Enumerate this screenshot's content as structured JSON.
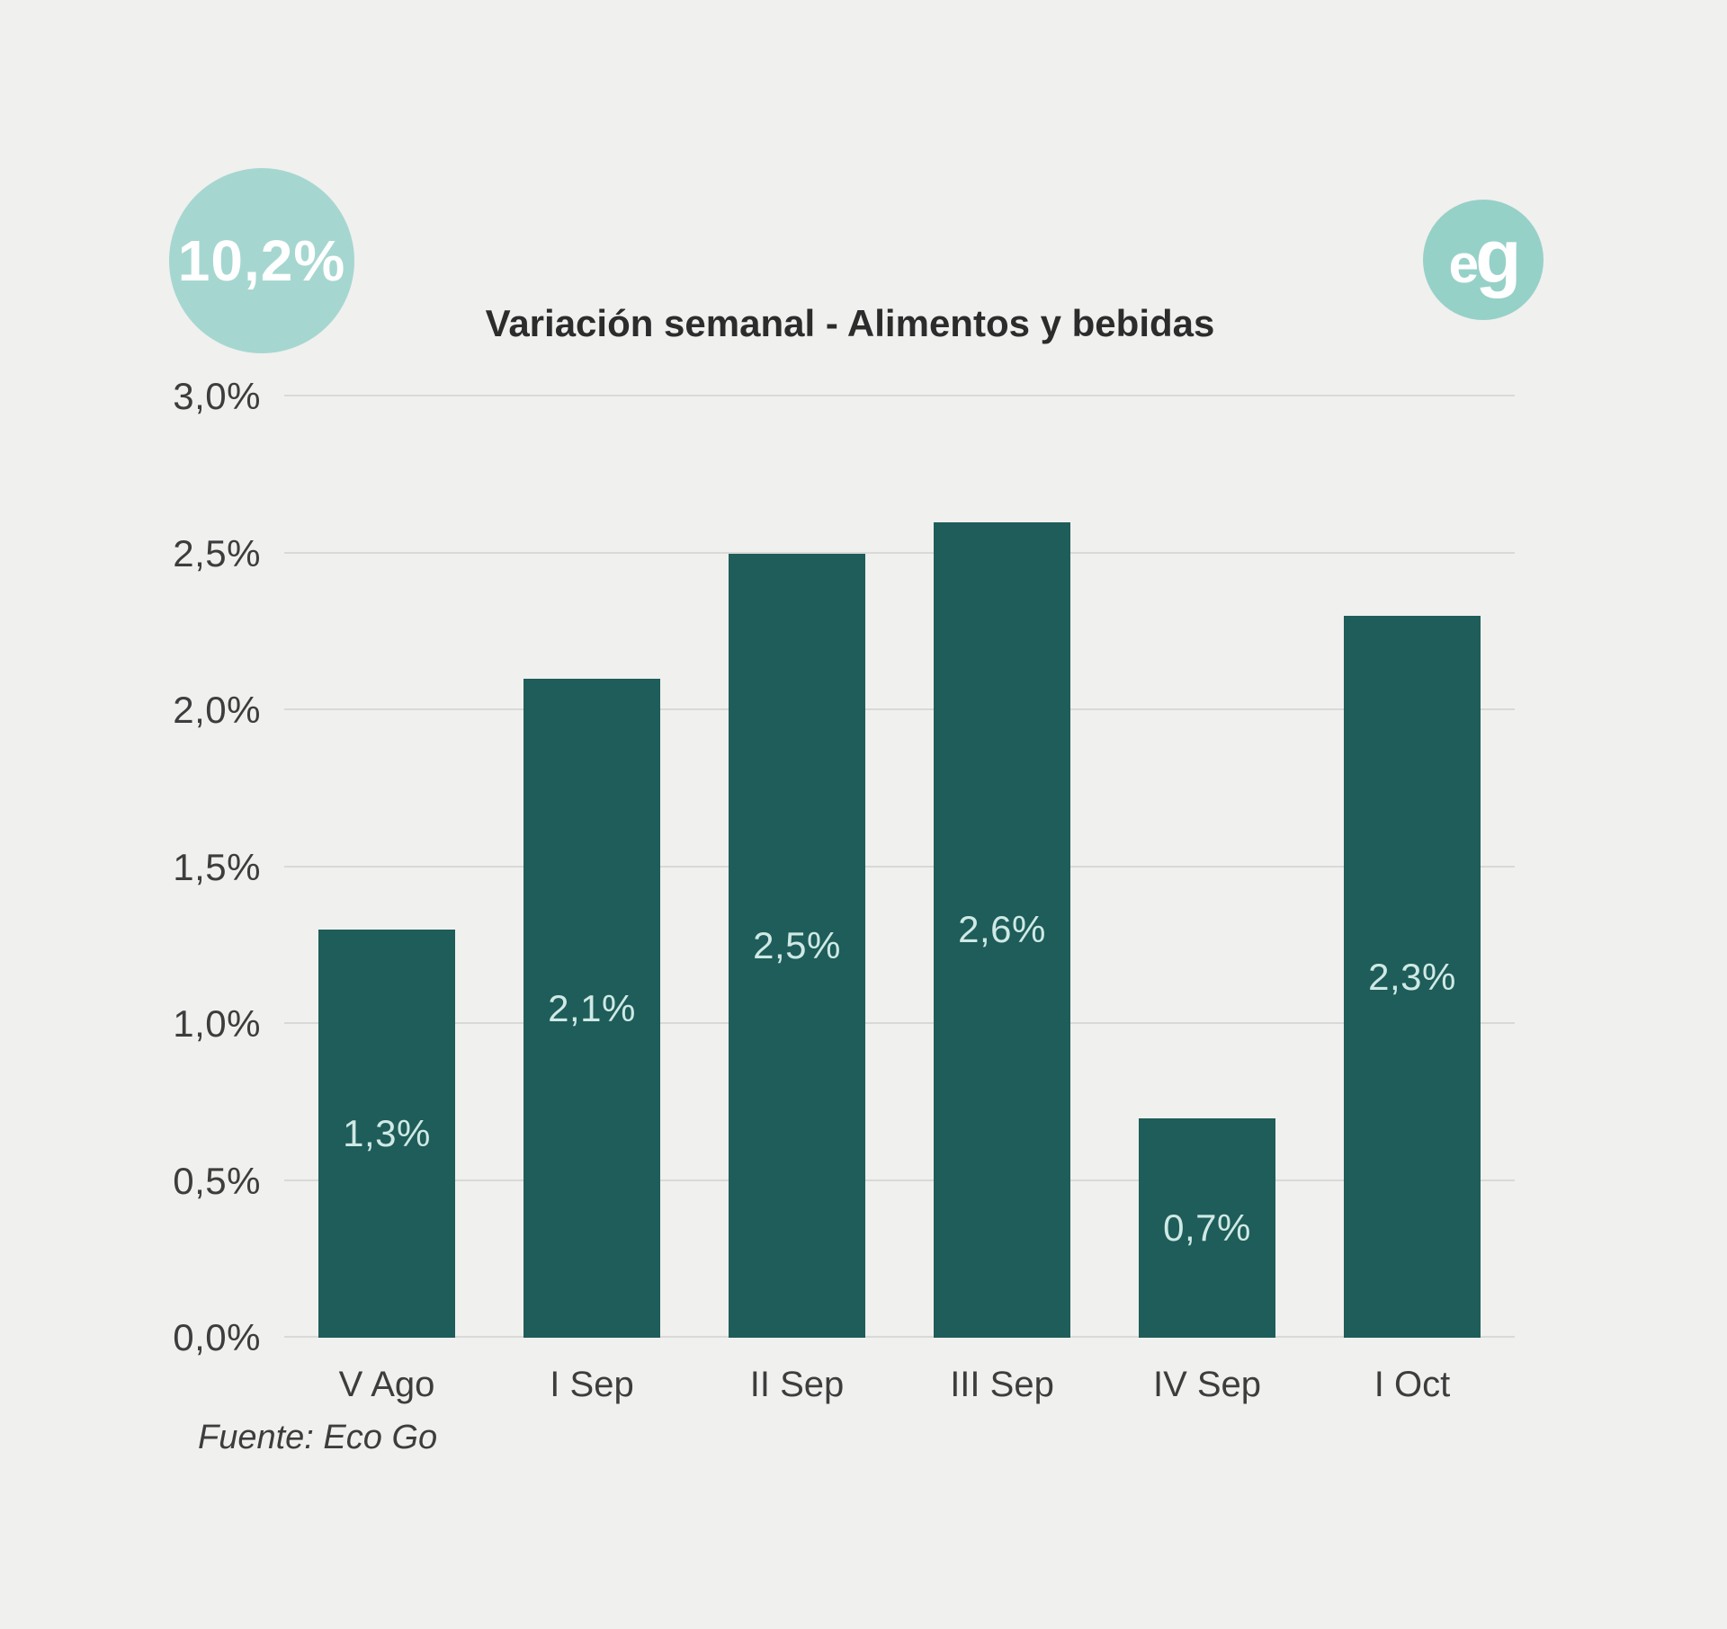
{
  "badge": {
    "value": "10,2%"
  },
  "logo": {
    "text": "eg"
  },
  "source": "Fuente: Eco Go",
  "chart_data": {
    "type": "bar",
    "title": "Variación semanal - Alimentos y bebidas",
    "categories": [
      "V Ago",
      "I Sep",
      "II Sep",
      "III Sep",
      "IV Sep",
      "I Oct"
    ],
    "values": [
      1.3,
      2.1,
      2.5,
      2.6,
      0.7,
      2.3
    ],
    "value_labels": [
      "1,3%",
      "2,1%",
      "2,5%",
      "2,6%",
      "0,7%",
      "2,3%"
    ],
    "xlabel": "",
    "ylabel": "",
    "ylim": [
      0,
      3.0
    ],
    "y_ticks": [
      {
        "v": 0.0,
        "label": "0,0%"
      },
      {
        "v": 0.5,
        "label": "0,5%"
      },
      {
        "v": 1.0,
        "label": "1,0%"
      },
      {
        "v": 1.5,
        "label": "1,5%"
      },
      {
        "v": 2.0,
        "label": "2,0%"
      },
      {
        "v": 2.5,
        "label": "2,5%"
      },
      {
        "v": 3.0,
        "label": "3,0%"
      }
    ],
    "grid": true,
    "legend": false,
    "source": "Fuente: Eco Go",
    "colors": {
      "bar": "#1e5d59",
      "bar_label": "#cfe9e5",
      "background": "#f0f0ee",
      "gridline": "#d9d9d7",
      "badge_circle": "#a5d7d0",
      "logo_circle": "#96d1c8",
      "title_text": "#2c2c2c",
      "axis_text": "#3d3d3d"
    }
  }
}
